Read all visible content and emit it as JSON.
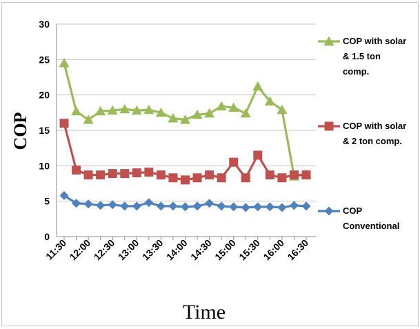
{
  "chart_data": {
    "type": "line",
    "xlabel": "Time",
    "ylabel": "COP",
    "ylim": [
      0,
      30
    ],
    "yticks": [
      "0",
      "5",
      "10",
      "15",
      "20",
      "25",
      "30"
    ],
    "xtick_labels": [
      "11:30",
      "12:00",
      "12:30",
      "13:00",
      "13:30",
      "14:00",
      "14:30",
      "15:00",
      "15:30",
      "16:00",
      "16:30"
    ],
    "x": [
      "11:30",
      "11:45",
      "12:00",
      "12:15",
      "12:30",
      "12:45",
      "13:00",
      "13:15",
      "13:30",
      "13:45",
      "14:00",
      "14:15",
      "14:30",
      "14:45",
      "15:00",
      "15:15",
      "15:30",
      "15:45",
      "16:00",
      "16:15",
      "16:30"
    ],
    "grid": "horizontal",
    "legend_position": "right",
    "series": [
      {
        "name_lines": [
          "COP with solar",
          "& 1.5 ton",
          "comp."
        ],
        "color": "#9bbb59",
        "marker": "triangle",
        "values": [
          24.5,
          17.7,
          16.5,
          17.7,
          17.8,
          18.0,
          17.8,
          17.9,
          17.5,
          16.7,
          16.5,
          17.2,
          17.4,
          18.4,
          18.2,
          17.4,
          21.2,
          19.1,
          17.9,
          8.5,
          8.8
        ]
      },
      {
        "name_lines": [
          "COP with solar",
          "& 2 ton comp."
        ],
        "color": "#c0504d",
        "marker": "square",
        "values": [
          16.0,
          9.4,
          8.7,
          8.7,
          8.9,
          8.9,
          9.0,
          9.1,
          8.7,
          8.3,
          8.0,
          8.3,
          8.7,
          8.3,
          10.5,
          8.3,
          11.5,
          8.7,
          8.3,
          8.7,
          8.7
        ]
      },
      {
        "name_lines": [
          "COP",
          "Conventional"
        ],
        "color": "#4f81bd",
        "marker": "diamond",
        "values": [
          5.8,
          4.7,
          4.6,
          4.4,
          4.5,
          4.3,
          4.3,
          4.8,
          4.3,
          4.3,
          4.2,
          4.3,
          4.7,
          4.3,
          4.2,
          4.1,
          4.2,
          4.2,
          4.1,
          4.4,
          4.3
        ]
      }
    ]
  }
}
